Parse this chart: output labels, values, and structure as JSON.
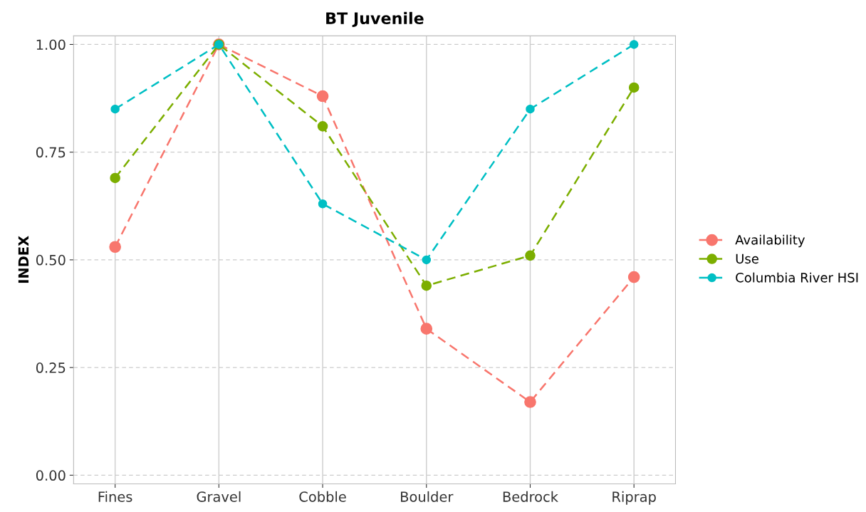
{
  "chart_data": {
    "type": "line",
    "title": "BT Juvenile",
    "ylabel": "INDEX",
    "categories": [
      "Fines",
      "Gravel",
      "Cobble",
      "Boulder",
      "Bedrock",
      "Riprap"
    ],
    "series": [
      {
        "name": "Availability",
        "color": "#f8766d",
        "values": [
          0.53,
          1.0,
          0.88,
          0.34,
          0.17,
          0.46
        ]
      },
      {
        "name": "Use",
        "color": "#7cae00",
        "values": [
          0.69,
          1.0,
          0.81,
          0.44,
          0.51,
          0.9
        ]
      },
      {
        "name": "Columbia River HSI",
        "color": "#00bfc4",
        "values": [
          0.85,
          1.0,
          0.63,
          0.5,
          0.85,
          1.0
        ]
      }
    ],
    "ylim": [
      -0.02,
      1.02
    ],
    "yticks": [
      {
        "value": 0,
        "label": "0.00"
      },
      {
        "value": 0.25,
        "label": "0.25"
      },
      {
        "value": 0.5,
        "label": "0.50"
      },
      {
        "value": 0.75,
        "label": "0.75"
      },
      {
        "value": 1,
        "label": "1.00"
      }
    ],
    "grid": true,
    "legend": "right",
    "marker": "circle",
    "line_style": "dashed"
  }
}
